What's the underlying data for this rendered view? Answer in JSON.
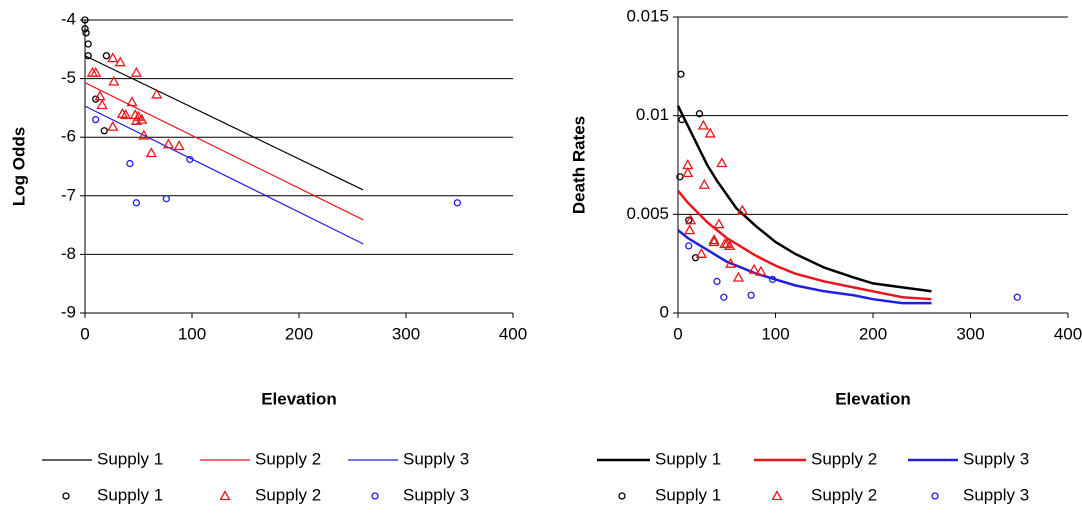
{
  "chart_data": [
    {
      "type": "combo",
      "ylabel": "Log Odds",
      "xlabel": "Elevation",
      "xlim": [
        0,
        400
      ],
      "xticks": [
        0,
        100,
        200,
        300,
        400
      ],
      "ylim": [
        -9,
        -4
      ],
      "yticks": [
        -4,
        -5,
        -6,
        -7,
        -8,
        -9
      ],
      "grid": true,
      "series": [
        {
          "name": "Supply 1",
          "type": "line",
          "color": "#000000",
          "x": [
            0,
            260
          ],
          "values": [
            -4.61,
            -6.9
          ]
        },
        {
          "name": "Supply 2",
          "type": "line",
          "color": "#e8161b",
          "x": [
            0,
            260
          ],
          "values": [
            -5.07,
            -7.41
          ]
        },
        {
          "name": "Supply 3",
          "type": "line",
          "color": "#1f1fe0",
          "x": [
            0,
            260
          ],
          "values": [
            -5.47,
            -7.82
          ]
        },
        {
          "name": "Supply 1",
          "type": "scatter",
          "marker": "circle",
          "color": "#000000",
          "x": [
            0,
            0,
            1,
            3,
            3,
            20,
            10,
            18
          ],
          "values": [
            -4.0,
            -4.15,
            -4.22,
            -4.41,
            -4.61,
            -4.61,
            -5.35,
            -5.89
          ]
        },
        {
          "name": "Supply 2",
          "type": "scatter",
          "marker": "triangle",
          "color": "#e8161b",
          "x": [
            7,
            10,
            14,
            16,
            26,
            33,
            27,
            48,
            44,
            35,
            38,
            47,
            50,
            53,
            48,
            26,
            55,
            67,
            62,
            78,
            88
          ],
          "values": [
            -4.9,
            -4.9,
            -5.3,
            -5.45,
            -4.65,
            -4.72,
            -5.05,
            -4.9,
            -5.4,
            -5.6,
            -5.62,
            -5.62,
            -5.65,
            -5.7,
            -5.72,
            -5.82,
            -5.97,
            -5.27,
            -6.27,
            -6.12,
            -6.15
          ]
        },
        {
          "name": "Supply 3",
          "type": "scatter",
          "marker": "circle",
          "color": "#1f1fe0",
          "x": [
            10,
            42,
            48,
            76,
            98,
            348
          ],
          "values": [
            -5.7,
            -6.45,
            -7.12,
            -7.05,
            -6.38,
            -7.12
          ]
        }
      ]
    },
    {
      "type": "combo",
      "ylabel": "Death Rates",
      "xlabel": "Elevation",
      "xlim": [
        0,
        400
      ],
      "xticks": [
        0,
        100,
        200,
        300,
        400
      ],
      "ylim": [
        0,
        0.015
      ],
      "yticks": [
        0,
        0.005,
        0.01,
        0.015
      ],
      "grid": true,
      "series": [
        {
          "name": "Supply 1",
          "type": "line",
          "color": "#000000",
          "x": [
            0,
            10,
            20,
            30,
            40,
            50,
            60,
            80,
            100,
            120,
            150,
            180,
            200,
            230,
            260
          ],
          "values": [
            0.0105,
            0.0095,
            0.0085,
            0.0075,
            0.0067,
            0.006,
            0.0053,
            0.0044,
            0.0036,
            0.003,
            0.0023,
            0.0018,
            0.0015,
            0.0013,
            0.0011
          ]
        },
        {
          "name": "Supply 2",
          "type": "line",
          "color": "#e8161b",
          "x": [
            0,
            10,
            20,
            30,
            40,
            50,
            60,
            80,
            100,
            120,
            150,
            180,
            200,
            230,
            260
          ],
          "values": [
            0.0062,
            0.0056,
            0.0051,
            0.0046,
            0.0042,
            0.0038,
            0.0035,
            0.0029,
            0.0024,
            0.002,
            0.0016,
            0.0013,
            0.0011,
            0.0008,
            0.0007
          ]
        },
        {
          "name": "Supply 3",
          "type": "line",
          "color": "#1f1fe0",
          "x": [
            0,
            10,
            20,
            30,
            40,
            50,
            60,
            80,
            100,
            120,
            150,
            180,
            200,
            230,
            260
          ],
          "values": [
            0.0042,
            0.0038,
            0.0035,
            0.0032,
            0.0029,
            0.0026,
            0.0024,
            0.002,
            0.0017,
            0.0014,
            0.0011,
            0.0009,
            0.0007,
            0.0005,
            0.0005
          ]
        },
        {
          "name": "Supply 1",
          "type": "scatter",
          "marker": "circle",
          "color": "#000000",
          "x": [
            3,
            4,
            2,
            22,
            11,
            18
          ],
          "values": [
            0.0121,
            0.0098,
            0.0069,
            0.0101,
            0.0047,
            0.0028
          ]
        },
        {
          "name": "Supply 2",
          "type": "scatter",
          "marker": "triangle",
          "color": "#e8161b",
          "x": [
            10,
            10,
            13,
            12,
            26,
            33,
            27,
            45,
            37,
            42,
            48,
            50,
            53,
            24,
            54,
            66,
            62,
            78,
            85,
            37
          ],
          "values": [
            0.0075,
            0.0071,
            0.0047,
            0.0042,
            0.0095,
            0.0091,
            0.0065,
            0.0076,
            0.0037,
            0.0045,
            0.0035,
            0.0035,
            0.0034,
            0.003,
            0.0025,
            0.0052,
            0.0018,
            0.0022,
            0.0021,
            0.0036
          ]
        },
        {
          "name": "Supply 3",
          "type": "scatter",
          "marker": "circle",
          "color": "#1f1fe0",
          "x": [
            11,
            40,
            47,
            75,
            97,
            348
          ],
          "values": [
            0.0034,
            0.0016,
            0.0008,
            0.0009,
            0.0017,
            0.0008
          ]
        }
      ]
    }
  ]
}
